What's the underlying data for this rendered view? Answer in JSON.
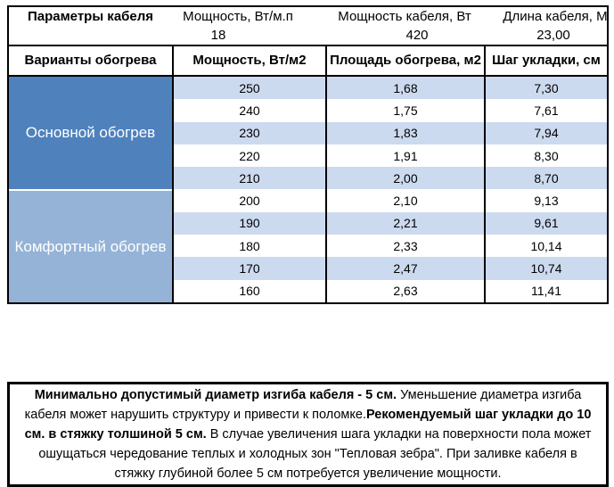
{
  "header_top": {
    "title": "Параметры кабеля",
    "cols": [
      {
        "label": "Мощность, Вт/м.п",
        "value": "18"
      },
      {
        "label": "Мощность кабеля, Вт",
        "value": "420"
      },
      {
        "label": "Длина кабеля, М",
        "value": "23,00"
      }
    ]
  },
  "variants": {
    "title": "Варианты обогрева",
    "cols": [
      "Мощность, Вт/м2",
      "Площадь обогрева, м2",
      "Шаг укладки, см"
    ]
  },
  "sections": [
    {
      "label": "Основной обогрев",
      "rows": [
        [
          "250",
          "1,68",
          "7,30"
        ],
        [
          "240",
          "1,75",
          "7,61"
        ],
        [
          "230",
          "1,83",
          "7,94"
        ],
        [
          "220",
          "1,91",
          "8,30"
        ],
        [
          "210",
          "2,00",
          "8,70"
        ]
      ]
    },
    {
      "label": "Комфортный обогрев",
      "rows": [
        [
          "200",
          "2,10",
          "9,13"
        ],
        [
          "190",
          "2,21",
          "9,61"
        ],
        [
          "180",
          "2,33",
          "10,14"
        ],
        [
          "170",
          "2,47",
          "10,74"
        ],
        [
          "160",
          "2,63",
          "11,41"
        ]
      ]
    }
  ],
  "note": {
    "bold_1": "Минимально допустимый диаметр изгиба кабеля - 5 см.",
    "normal_1": " Уменьшение диаметра изгиба кабеля может нарушить структуру и привести к поломке.",
    "bold_2": "Рекомендуемый шаг укладки до 10 см. в стяжку толшиной 5 см.",
    "normal_2": " В случае увеличения шага укладки на поверхности пола может ошущаться чередование теплых и холодных зон \"Тепловая зебра\". При заливке кабеля в стяжку глубиной более 5 см потребуется увеличение мощности."
  },
  "colors": {
    "main_group": "#4f81bd",
    "comfort_group": "#95b3d7",
    "stripe": "#ccdaef",
    "border": "#000000"
  }
}
